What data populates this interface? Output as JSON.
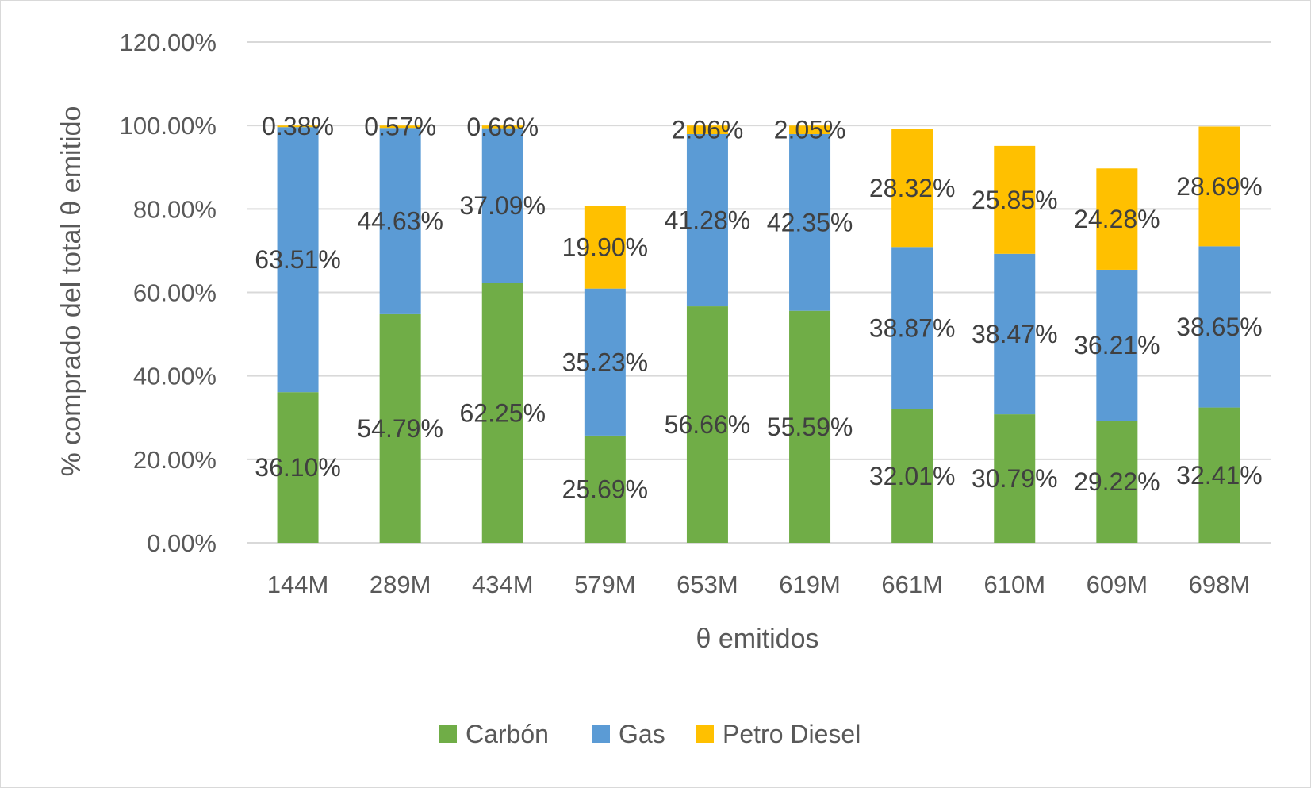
{
  "chart_data": {
    "type": "bar",
    "stacked": true,
    "title": "",
    "xlabel": "θ emitidos",
    "ylabel": "% comprado del total θ emitido",
    "ylim": [
      0,
      120
    ],
    "y_tick_labels": [
      "0.00%",
      "20.00%",
      "40.00%",
      "60.00%",
      "80.00%",
      "100.00%",
      "120.00%"
    ],
    "grid": true,
    "legend_position": "bottom",
    "categories": [
      "144M",
      "289M",
      "434M",
      "579M",
      "653M",
      "619M",
      "661M",
      "610M",
      "609M",
      "698M"
    ],
    "series": [
      {
        "name": "Carbón",
        "color": "#70ad47",
        "values": [
          36.1,
          54.79,
          62.25,
          25.69,
          56.66,
          55.59,
          32.01,
          30.79,
          29.22,
          32.41
        ],
        "labels": [
          "36.10%",
          "54.79%",
          "62.25%",
          "25.69%",
          "56.66%",
          "55.59%",
          "32.01%",
          "30.79%",
          "29.22%",
          "32.41%"
        ]
      },
      {
        "name": "Gas",
        "color": "#5b9bd5",
        "values": [
          63.51,
          44.63,
          37.09,
          35.23,
          41.28,
          42.35,
          38.87,
          38.47,
          36.21,
          38.65
        ],
        "labels": [
          "63.51%",
          "44.63%",
          "37.09%",
          "35.23%",
          "41.28%",
          "42.35%",
          "38.87%",
          "38.47%",
          "36.21%",
          "38.65%"
        ]
      },
      {
        "name": "Petro Diesel",
        "color": "#ffc000",
        "values": [
          0.38,
          0.57,
          0.66,
          19.9,
          2.06,
          2.05,
          28.32,
          25.85,
          24.28,
          28.69
        ],
        "labels": [
          "0.38%",
          "0.57%",
          "0.66%",
          "19.90%",
          "2.06%",
          "2.05%",
          "28.32%",
          "25.85%",
          "24.28%",
          "28.69%"
        ]
      }
    ]
  },
  "colors": {
    "grid": "#d9d9d9",
    "text": "#595959",
    "data_label": "#404040"
  }
}
